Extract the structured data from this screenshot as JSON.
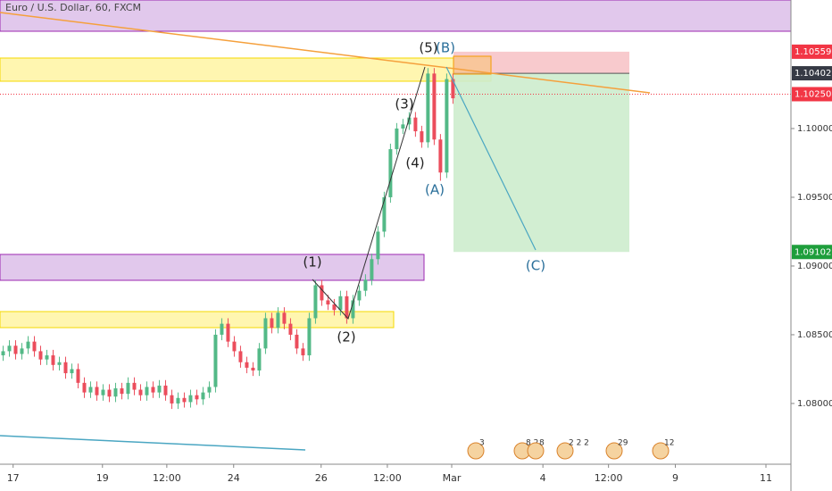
{
  "chart_data": {
    "type": "candlestick",
    "title": "Euro / U.S. Dollar, 60, FXCM",
    "x": [
      0,
      1,
      2,
      3,
      4,
      5,
      6,
      7,
      8,
      9,
      10,
      11,
      12,
      13,
      14,
      15,
      16,
      17,
      18,
      19,
      20,
      21,
      22,
      23,
      24,
      25,
      26,
      27,
      28,
      29,
      30,
      31,
      32,
      33,
      34,
      35,
      36,
      37,
      38,
      39,
      40,
      41,
      42,
      43,
      44,
      45,
      46,
      47,
      48,
      49,
      50,
      51,
      52,
      53,
      54,
      55,
      56,
      57,
      58,
      59,
      60,
      61,
      62,
      63,
      64,
      65,
      66,
      67,
      68,
      69,
      70,
      71,
      72
    ],
    "open": [
      1.0835,
      1.0838,
      1.0842,
      1.0836,
      1.084,
      1.0845,
      1.0838,
      1.0832,
      1.0835,
      1.0828,
      1.083,
      1.0822,
      1.0825,
      1.0815,
      1.0808,
      1.0812,
      1.0806,
      1.081,
      1.0805,
      1.0811,
      1.0807,
      1.0815,
      1.081,
      1.0806,
      1.0812,
      1.0808,
      1.0813,
      1.0806,
      1.08,
      1.0804,
      1.0801,
      1.0806,
      1.0803,
      1.0808,
      1.0812,
      1.085,
      1.0858,
      1.0845,
      1.0838,
      1.083,
      1.0826,
      1.0824,
      1.084,
      1.0862,
      1.0855,
      1.0866,
      1.0858,
      1.085,
      1.084,
      1.0835,
      1.0862,
      1.0886,
      1.0875,
      1.0872,
      1.0868,
      1.0878,
      1.0862,
      1.0875,
      1.0882,
      1.089,
      1.0905,
      1.0925,
      1.095,
      1.0985,
      1.1,
      1.1003,
      1.1008,
      1.0998,
      1.099,
      1.104,
      1.0992,
      1.0968,
      1.1036
    ],
    "high": [
      1.0842,
      1.0846,
      1.0846,
      1.0844,
      1.0849,
      1.0849,
      1.0842,
      1.0839,
      1.0839,
      1.0834,
      1.0834,
      1.0829,
      1.0829,
      1.0819,
      1.0816,
      1.0816,
      1.0814,
      1.0814,
      1.0815,
      1.0815,
      1.0819,
      1.0819,
      1.0814,
      1.0816,
      1.0816,
      1.0817,
      1.0817,
      1.081,
      1.0808,
      1.0808,
      1.081,
      1.081,
      1.0812,
      1.0816,
      1.0854,
      1.0862,
      1.0862,
      1.0849,
      1.0842,
      1.0834,
      1.083,
      1.0844,
      1.0866,
      1.0866,
      1.087,
      1.087,
      1.0862,
      1.0854,
      1.0844,
      1.0866,
      1.089,
      1.089,
      1.0879,
      1.0876,
      1.0882,
      1.0882,
      1.0879,
      1.0886,
      1.0894,
      1.0909,
      1.0929,
      1.0954,
      1.0989,
      1.1004,
      1.1007,
      1.1012,
      1.1012,
      1.1002,
      1.1044,
      1.1044,
      1.0996,
      1.104,
      1.104
    ],
    "low": [
      1.0831,
      1.0834,
      1.0832,
      1.0832,
      1.0836,
      1.0834,
      1.0828,
      1.0828,
      1.0824,
      1.0824,
      1.0818,
      1.0818,
      1.0811,
      1.0804,
      1.0804,
      1.0802,
      1.0802,
      1.0801,
      1.0801,
      1.0803,
      1.0803,
      1.0806,
      1.0802,
      1.0802,
      1.0804,
      1.0804,
      1.0802,
      1.0796,
      1.0796,
      1.0797,
      1.0797,
      1.0799,
      1.0799,
      1.0804,
      1.0808,
      1.0846,
      1.0841,
      1.0834,
      1.0826,
      1.0822,
      1.082,
      1.082,
      1.0836,
      1.0851,
      1.0851,
      1.0854,
      1.0846,
      1.0836,
      1.0831,
      1.0831,
      1.0858,
      1.0871,
      1.0868,
      1.0864,
      1.0864,
      1.0858,
      1.0858,
      1.0871,
      1.0878,
      1.0886,
      1.0901,
      1.0921,
      1.0946,
      1.0981,
      1.0996,
      1.0999,
      1.0994,
      1.0986,
      1.0986,
      1.0988,
      1.0962,
      1.0964,
      1.1018
    ],
    "close": [
      1.0838,
      1.0842,
      1.0836,
      1.084,
      1.0845,
      1.0838,
      1.0832,
      1.0835,
      1.0828,
      1.083,
      1.0822,
      1.0825,
      1.0815,
      1.0808,
      1.0812,
      1.0806,
      1.081,
      1.0805,
      1.0811,
      1.0807,
      1.0815,
      1.081,
      1.0806,
      1.0812,
      1.0808,
      1.0813,
      1.0806,
      1.08,
      1.0804,
      1.0801,
      1.0806,
      1.0803,
      1.0808,
      1.0812,
      1.085,
      1.0858,
      1.0845,
      1.0838,
      1.083,
      1.0826,
      1.0824,
      1.084,
      1.0862,
      1.0855,
      1.0866,
      1.0858,
      1.085,
      1.084,
      1.0835,
      1.0862,
      1.0886,
      1.0875,
      1.0872,
      1.0868,
      1.0878,
      1.0862,
      1.0875,
      1.0882,
      1.089,
      1.0905,
      1.0925,
      1.095,
      1.0985,
      1.1,
      1.1003,
      1.1008,
      1.0998,
      1.099,
      1.104,
      1.0992,
      1.0968,
      1.1036,
      1.1022
    ],
    "up_color": "#53b987",
    "down_color": "#eb4d5c",
    "xlim": [
      -0.5,
      126.1
    ],
    "xticks": [
      {
        "value": 1.6,
        "label": "17"
      },
      {
        "value": 15.9,
        "label": "19"
      },
      {
        "value": 26.2,
        "label": "12:00"
      },
      {
        "value": 36.9,
        "label": "24"
      },
      {
        "value": 50.9,
        "label": "26"
      },
      {
        "value": 61.5,
        "label": "12:00"
      },
      {
        "value": 71.8,
        "label": "Mar"
      },
      {
        "value": 86.4,
        "label": "4"
      },
      {
        "value": 96.9,
        "label": "12:00"
      },
      {
        "value": 107.6,
        "label": "9"
      },
      {
        "value": 122.1,
        "label": "11"
      }
    ],
    "ylim": [
      1.07558,
      1.10935
    ],
    "yticks": [
      {
        "value": 1.08,
        "label": "1.08000"
      },
      {
        "value": 1.085,
        "label": "1.08500"
      },
      {
        "value": 1.09,
        "label": "1.09000"
      },
      {
        "value": 1.095,
        "label": "1.09500"
      },
      {
        "value": 1.1,
        "label": "1.10000"
      }
    ],
    "price_labels": [
      {
        "value": 1.10559,
        "label": "1.10559",
        "color": "#f23645"
      },
      {
        "value": 1.10402,
        "label": "1.10402",
        "color": "#363a45"
      },
      {
        "value": 1.1025,
        "label": "1.10250",
        "color": "#f23645"
      },
      {
        "value": 1.09102,
        "label": "1.09102",
        "color": "#1e9e3c"
      }
    ],
    "annotations": [
      "(1)",
      "(2)",
      "(3)",
      "(4)",
      "(5)",
      "(A)",
      "(B)",
      "(C)"
    ],
    "events": [
      "3",
      "8 2",
      "8",
      "2 2 2",
      "29",
      "12"
    ]
  }
}
